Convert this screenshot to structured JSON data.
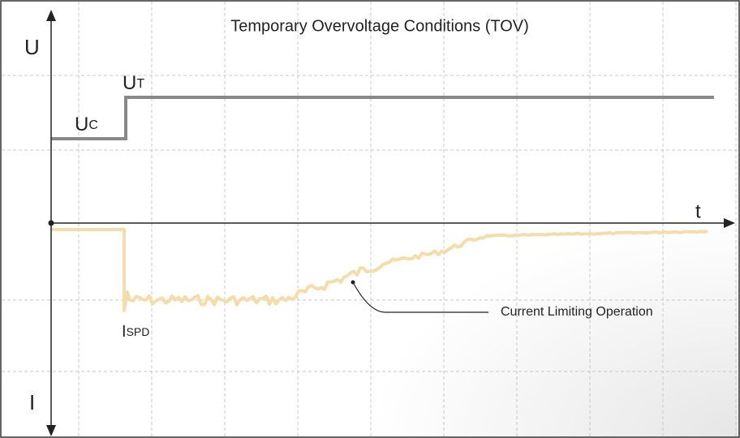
{
  "title": "Temporary Overvoltage Conditions (TOV)",
  "axes": {
    "voltage": "U",
    "current": "I",
    "time": "t"
  },
  "labels": {
    "uc": {
      "main": "U",
      "sub": "C"
    },
    "ut": {
      "main": "U",
      "sub": "T"
    },
    "ispd": {
      "main": "I",
      "sub": "SPD"
    }
  },
  "annotation": "Current Limiting Operation"
}
